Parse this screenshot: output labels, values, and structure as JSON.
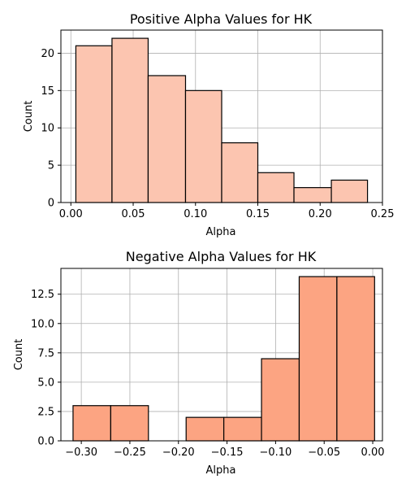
{
  "chart_data": [
    {
      "type": "bar",
      "title": "Positive Alpha Values for HK",
      "xlabel": "Alpha",
      "ylabel": "Count",
      "xlim": [
        -0.008,
        0.25
      ],
      "ylim": [
        0,
        23.1
      ],
      "grid": true,
      "bar_color": "#fcc5b0",
      "bins": [
        {
          "x0": 0.004,
          "x1": 0.033,
          "value": 21
        },
        {
          "x0": 0.033,
          "x1": 0.062,
          "value": 22
        },
        {
          "x0": 0.062,
          "x1": 0.092,
          "value": 17
        },
        {
          "x0": 0.092,
          "x1": 0.121,
          "value": 15
        },
        {
          "x0": 0.121,
          "x1": 0.15,
          "value": 8
        },
        {
          "x0": 0.15,
          "x1": 0.179,
          "value": 4
        },
        {
          "x0": 0.179,
          "x1": 0.209,
          "value": 2
        },
        {
          "x0": 0.209,
          "x1": 0.238,
          "value": 3
        }
      ],
      "xticks": [
        {
          "value": 0.0,
          "label": "0.00"
        },
        {
          "value": 0.05,
          "label": "0.05"
        },
        {
          "value": 0.1,
          "label": "0.10"
        },
        {
          "value": 0.15,
          "label": "0.15"
        },
        {
          "value": 0.2,
          "label": "0.20"
        },
        {
          "value": 0.25,
          "label": "0.25"
        }
      ],
      "yticks": [
        {
          "value": 0,
          "label": "0"
        },
        {
          "value": 5,
          "label": "5"
        },
        {
          "value": 10,
          "label": "10"
        },
        {
          "value": 15,
          "label": "15"
        },
        {
          "value": 20,
          "label": "20"
        }
      ]
    },
    {
      "type": "bar",
      "title": "Negative Alpha Values for HK",
      "xlabel": "Alpha",
      "ylabel": "Count",
      "xlim": [
        -0.321,
        0.01
      ],
      "ylim": [
        0,
        14.7
      ],
      "grid": true,
      "bar_color": "#fca482",
      "bins": [
        {
          "x0": -0.3085,
          "x1": -0.2697,
          "value": 3
        },
        {
          "x0": -0.2697,
          "x1": -0.2309,
          "value": 3
        },
        {
          "x0": -0.2309,
          "x1": -0.1921,
          "value": 0
        },
        {
          "x0": -0.1921,
          "x1": -0.1533,
          "value": 2
        },
        {
          "x0": -0.1533,
          "x1": -0.1145,
          "value": 2
        },
        {
          "x0": -0.1145,
          "x1": -0.0757,
          "value": 7
        },
        {
          "x0": -0.0757,
          "x1": -0.0369,
          "value": 14
        },
        {
          "x0": -0.0369,
          "x1": 0.0019,
          "value": 14
        }
      ],
      "xticks": [
        {
          "value": -0.3,
          "label": "−0.30"
        },
        {
          "value": -0.25,
          "label": "−0.25"
        },
        {
          "value": -0.2,
          "label": "−0.20"
        },
        {
          "value": -0.15,
          "label": "−0.15"
        },
        {
          "value": -0.1,
          "label": "−0.10"
        },
        {
          "value": -0.05,
          "label": "−0.05"
        },
        {
          "value": 0.0,
          "label": "0.00"
        }
      ],
      "yticks": [
        {
          "value": 0.0,
          "label": "0.0"
        },
        {
          "value": 2.5,
          "label": "2.5"
        },
        {
          "value": 5.0,
          "label": "5.0"
        },
        {
          "value": 7.5,
          "label": "7.5"
        },
        {
          "value": 10.0,
          "label": "10.0"
        },
        {
          "value": 12.5,
          "label": "12.5"
        }
      ]
    }
  ]
}
